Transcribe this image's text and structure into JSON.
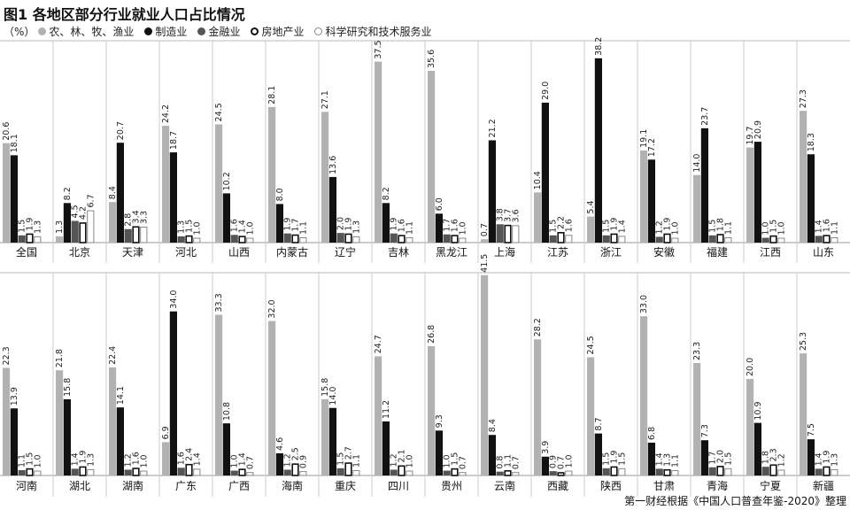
{
  "title": "图1 各地区部分行业就业人口占比情况",
  "legend": {
    "unit": "（%）",
    "items": [
      {
        "label": "农、林、牧、渔业",
        "color": "#b2b2b2"
      },
      {
        "label": "制造业",
        "color": "#111111"
      },
      {
        "label": "金融业",
        "color": "#555555"
      },
      {
        "label": "房地产业",
        "color": "#ffffff"
      },
      {
        "label": "科学研究和技术服务业",
        "color": "#ffffff"
      }
    ]
  },
  "source": "第一财经根据《中国人口普查年鉴-2020》整理",
  "chart_data": {
    "type": "bar",
    "unit": "%",
    "series": [
      {
        "name": "农、林、牧、渔业",
        "style": "light-gray"
      },
      {
        "name": "制造业",
        "style": "black"
      },
      {
        "name": "金融业",
        "style": "dark-gray"
      },
      {
        "name": "房地产业",
        "style": "white-outlined-black"
      },
      {
        "name": "科学研究和技术服务业",
        "style": "white-outlined-gray"
      }
    ],
    "rows": [
      {
        "regions": [
          {
            "name": "全国",
            "values": [
              20.6,
              18.1,
              1.5,
              1.9,
              1.3
            ]
          },
          {
            "name": "北京",
            "values": [
              1.3,
              8.2,
              4.5,
              4.2,
              6.7
            ]
          },
          {
            "name": "天津",
            "values": [
              8.4,
              20.7,
              2.8,
              3.4,
              3.3
            ]
          },
          {
            "name": "河北",
            "values": [
              24.2,
              18.7,
              1.3,
              1.5,
              1.0
            ]
          },
          {
            "name": "山西",
            "values": [
              24.5,
              10.2,
              1.6,
              1.4,
              1.0
            ]
          },
          {
            "name": "内蒙古",
            "values": [
              28.1,
              8.0,
              1.9,
              1.7,
              1.1
            ]
          },
          {
            "name": "辽宁",
            "values": [
              27.1,
              13.6,
              2.0,
              1.9,
              1.3
            ]
          },
          {
            "name": "吉林",
            "values": [
              37.5,
              8.2,
              1.9,
              1.6,
              1.1
            ]
          },
          {
            "name": "黑龙江",
            "values": [
              35.6,
              6.0,
              1.7,
              1.6,
              1.0
            ]
          },
          {
            "name": "上海",
            "values": [
              0.7,
              21.2,
              3.8,
              3.7,
              3.6
            ]
          },
          {
            "name": "江苏",
            "values": [
              10.4,
              29.0,
              1.5,
              2.2,
              1.6
            ]
          },
          {
            "name": "浙江",
            "values": [
              5.4,
              38.2,
              1.5,
              1.9,
              1.4
            ]
          },
          {
            "name": "安徽",
            "values": [
              19.1,
              17.2,
              1.2,
              1.9,
              1.0
            ]
          },
          {
            "name": "福建",
            "values": [
              14.0,
              23.7,
              1.5,
              1.8,
              1.1
            ]
          },
          {
            "name": "江西",
            "values": [
              19.7,
              20.9,
              1.0,
              1.5,
              1.0
            ]
          },
          {
            "name": "山东",
            "values": [
              27.3,
              18.3,
              1.4,
              1.6,
              1.1
            ]
          }
        ]
      },
      {
        "regions": [
          {
            "name": "河南",
            "values": [
              22.3,
              13.9,
              1.1,
              1.5,
              1.0
            ]
          },
          {
            "name": "湖北",
            "values": [
              21.8,
              15.8,
              1.4,
              1.9,
              1.3
            ]
          },
          {
            "name": "湖南",
            "values": [
              22.4,
              14.1,
              1.2,
              1.6,
              1.0
            ]
          },
          {
            "name": "广东",
            "values": [
              6.9,
              34.0,
              1.6,
              2.4,
              1.4
            ]
          },
          {
            "name": "广西",
            "values": [
              33.3,
              10.8,
              1.0,
              1.4,
              0.7
            ]
          },
          {
            "name": "海南",
            "values": [
              32.0,
              4.6,
              1.2,
              2.5,
              0.9
            ]
          },
          {
            "name": "重庆",
            "values": [
              15.8,
              14.0,
              1.5,
              2.7,
              1.1
            ]
          },
          {
            "name": "四川",
            "values": [
              24.7,
              11.2,
              1.2,
              2.1,
              1.0
            ]
          },
          {
            "name": "贵州",
            "values": [
              26.8,
              9.3,
              1.0,
              1.5,
              0.7
            ]
          },
          {
            "name": "云南",
            "values": [
              41.5,
              8.4,
              0.8,
              1.1,
              0.7
            ]
          },
          {
            "name": "西藏",
            "values": [
              28.2,
              3.9,
              0.9,
              0.7,
              1.0
            ]
          },
          {
            "name": "陕西",
            "values": [
              24.5,
              8.7,
              1.5,
              1.9,
              1.5
            ]
          },
          {
            "name": "甘肃",
            "values": [
              33.0,
              6.8,
              1.4,
              1.3,
              1.1
            ]
          },
          {
            "name": "青海",
            "values": [
              23.3,
              7.3,
              1.7,
              2.0,
              1.5
            ]
          },
          {
            "name": "宁夏",
            "values": [
              20.0,
              10.9,
              1.8,
              2.3,
              1.2
            ]
          },
          {
            "name": "新疆",
            "values": [
              25.3,
              7.5,
              1.4,
              1.9,
              1.3
            ]
          }
        ]
      }
    ]
  }
}
